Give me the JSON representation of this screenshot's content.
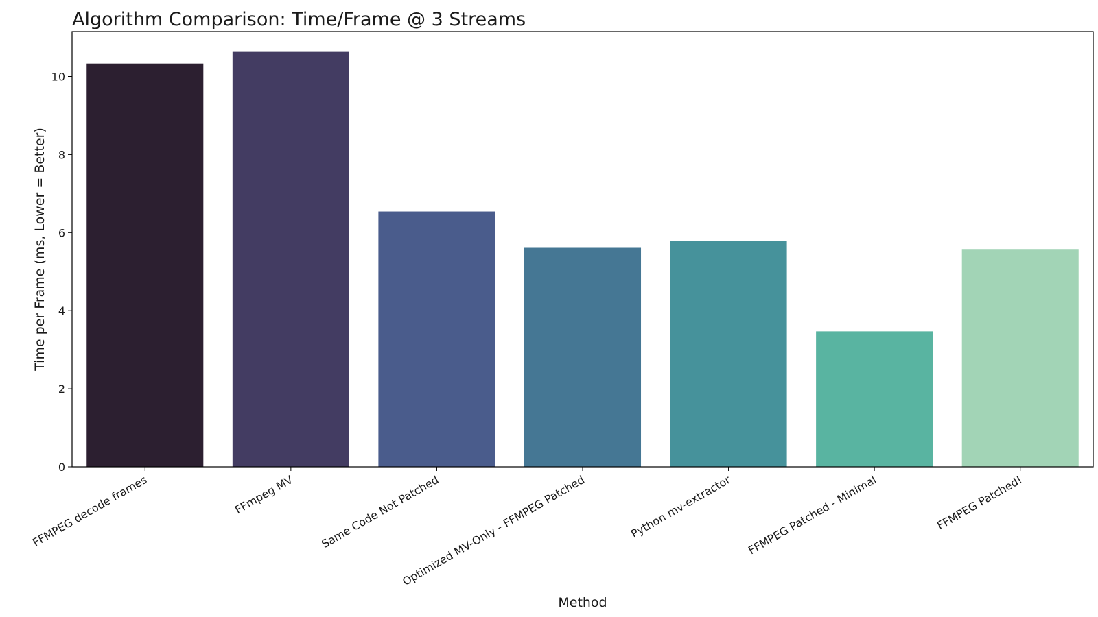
{
  "chart_data": {
    "type": "bar",
    "title": "Algorithm Comparison: Time/Frame @ 3 Streams",
    "xlabel": "Method",
    "ylabel": "Time per Frame (ms, Lower = Better)",
    "categories": [
      "FFMPEG decode frames",
      "FFmpeg MV",
      "Same Code Not Patched",
      "Optimized MV-Only - FFMPEG Patched",
      "Python mv-extractor",
      "FFMPEG Patched - Minimal",
      "FFMPEG Patched!"
    ],
    "values": [
      10.33,
      10.63,
      6.54,
      5.61,
      5.79,
      3.47,
      5.58
    ],
    "colors": [
      "#2c1f30",
      "#433c62",
      "#4a5c8c",
      "#457794",
      "#46929b",
      "#59b4a1",
      "#a2d4b6"
    ],
    "ylim": [
      0,
      11.15
    ],
    "yticks": [
      0,
      2,
      4,
      6,
      8,
      10
    ],
    "grid": false,
    "legend": "none"
  }
}
